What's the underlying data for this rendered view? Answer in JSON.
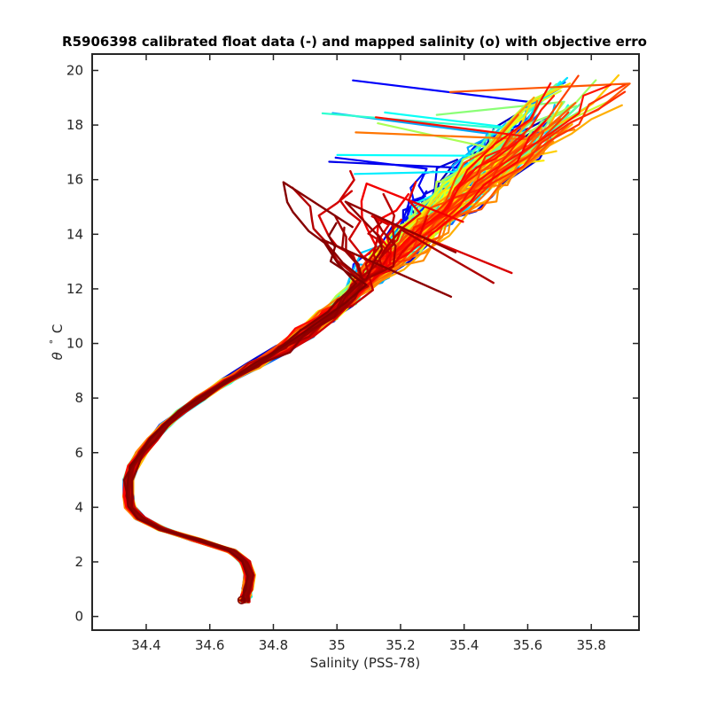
{
  "chart_data": {
    "type": "line",
    "title": "R5906398 calibrated float data (-) and mapped salinity (o) with objective erro",
    "xlabel": "Salinity (PSS-78)",
    "ylabel_symbol": "θ",
    "ylabel_degree": "°",
    "ylabel_unit": "C",
    "xlim": [
      34.23,
      35.95
    ],
    "ylim": [
      -0.5,
      20.6
    ],
    "xticks": [
      {
        "value": 34.4,
        "label": "34.4"
      },
      {
        "value": 34.6,
        "label": "34.6"
      },
      {
        "value": 34.8,
        "label": "34.8"
      },
      {
        "value": 35.0,
        "label": "35"
      },
      {
        "value": 35.2,
        "label": "35.2"
      },
      {
        "value": 35.4,
        "label": "35.4"
      },
      {
        "value": 35.6,
        "label": "35.6"
      },
      {
        "value": 35.8,
        "label": "35.8"
      }
    ],
    "yticks": [
      {
        "value": 0,
        "label": "0"
      },
      {
        "value": 2,
        "label": "2"
      },
      {
        "value": 4,
        "label": "4"
      },
      {
        "value": 6,
        "label": "6"
      },
      {
        "value": 8,
        "label": "8"
      },
      {
        "value": 10,
        "label": "10"
      },
      {
        "value": 12,
        "label": "12"
      },
      {
        "value": 14,
        "label": "14"
      },
      {
        "value": 16,
        "label": "16"
      },
      {
        "value": 18,
        "label": "18"
      },
      {
        "value": 20,
        "label": "20"
      }
    ],
    "grid": false,
    "colormap": "jet",
    "colormap_colors": [
      "#00008f",
      "#0000ff",
      "#0080ff",
      "#00ffff",
      "#80ff80",
      "#ffff00",
      "#ff8000",
      "#ff0000",
      "#800000"
    ],
    "profile_count": 160,
    "base_profile": {
      "theta": [
        0.55,
        0.75,
        1.0,
        1.5,
        2.0,
        2.4,
        2.8,
        3.2,
        3.6,
        4.0,
        4.4,
        5.0,
        5.5,
        6.0,
        6.5,
        7.0,
        7.5,
        8.0,
        8.6,
        9.2,
        9.8,
        10.4,
        11.0,
        11.6,
        12.2
      ],
      "salinity": [
        34.71,
        34.715,
        34.72,
        34.725,
        34.71,
        34.67,
        34.56,
        34.45,
        34.38,
        34.35,
        34.345,
        34.345,
        34.36,
        34.385,
        34.42,
        34.46,
        34.51,
        34.57,
        34.65,
        34.74,
        34.83,
        34.9,
        34.97,
        35.03,
        35.08
      ]
    },
    "upper_fan": {
      "salinity_range": [
        35.1,
        35.85
      ],
      "theta_range": [
        12.2,
        19.6
      ]
    },
    "mapped_salinity_marker": {
      "salinity": 34.7,
      "theta": 0.6,
      "symbol": "o",
      "color": "#800000"
    }
  }
}
